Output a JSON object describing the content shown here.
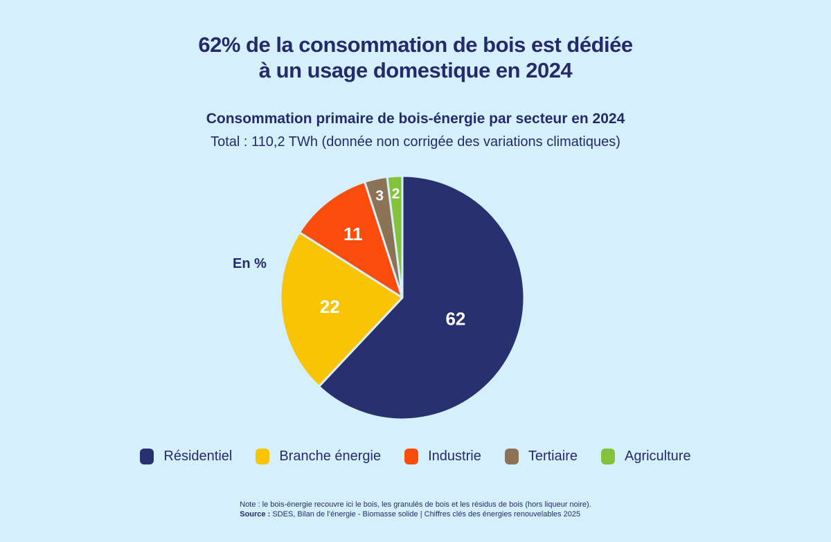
{
  "page": {
    "background_color": "#d6f0fb",
    "text_color": "#242a6a"
  },
  "header": {
    "title_line1": "62% de la consommation de bois est dédiée",
    "title_line2": "à un usage domestique en 2024"
  },
  "chart_data": {
    "type": "pie",
    "title": "Consommation primaire de bois-énergie par secteur en 2024",
    "subtitle": "Total : 110,2 TWh (donnée non corrigée des variations climatiques)",
    "unit_label": "En %",
    "start_angle_deg": 0,
    "direction": "clockwise",
    "categories": [
      "Résidentiel",
      "Branche énergie",
      "Industrie",
      "Tertiaire",
      "Agriculture"
    ],
    "values": [
      62,
      22,
      11,
      3,
      2
    ],
    "colors": [
      "#293070",
      "#f9c306",
      "#fa4d0b",
      "#8d7355",
      "#84c23c"
    ],
    "value_label_color": "#ffffff",
    "separator_color": "#d6f0fb",
    "legend_position": "bottom"
  },
  "notes": {
    "line1": "Note : le bois-énergie recouvre ici le bois, les granulés de bois et les résidus de bois (hors liqueur noire).",
    "source_label": "Source :",
    "source_text": "SDES, Bilan de l’énergie - Biomasse solide | Chiffres clés des énergies renouvelables 2025"
  }
}
